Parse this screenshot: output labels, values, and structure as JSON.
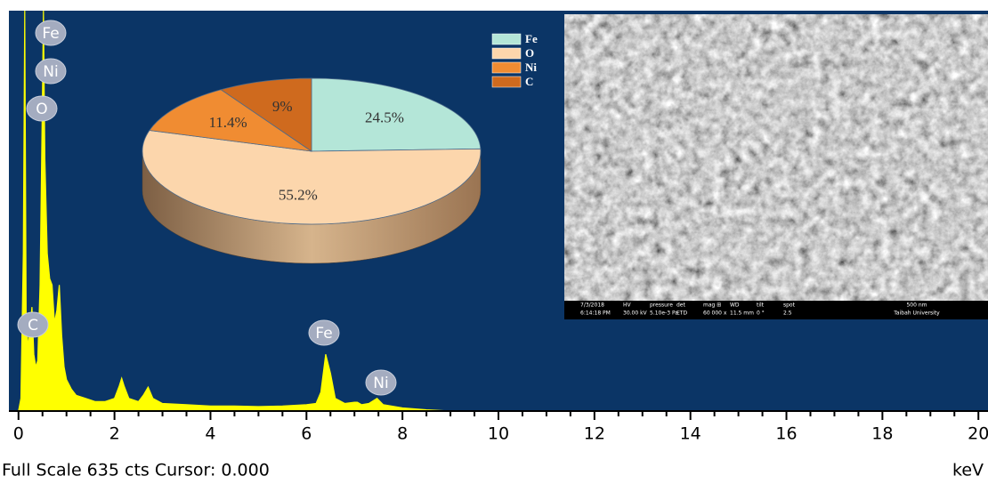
{
  "chart_data": [
    {
      "type": "area",
      "color": "#ffff00",
      "x": [
        0,
        0.05,
        0.1,
        0.13,
        0.16,
        0.2,
        0.25,
        0.28,
        0.32,
        0.36,
        0.4,
        0.45,
        0.5,
        0.52,
        0.55,
        0.6,
        0.65,
        0.7,
        0.75,
        0.8,
        0.85,
        0.9,
        0.95,
        1.0,
        1.1,
        1.2,
        1.4,
        1.6,
        1.8,
        2.0,
        2.1,
        2.15,
        2.2,
        2.3,
        2.5,
        2.6,
        2.7,
        2.8,
        3.0,
        3.5,
        4.0,
        4.5,
        5.0,
        5.5,
        6.0,
        6.2,
        6.3,
        6.4,
        6.5,
        6.6,
        6.8,
        7.0,
        7.06,
        7.15,
        7.3,
        7.47,
        7.6,
        8.0,
        8.5,
        9.0,
        20.0
      ],
      "values": [
        0,
        20,
        250,
        635,
        150,
        100,
        140,
        165,
        90,
        70,
        80,
        200,
        500,
        635,
        400,
        250,
        210,
        200,
        140,
        160,
        200,
        120,
        70,
        50,
        35,
        25,
        20,
        15,
        15,
        20,
        40,
        52,
        40,
        20,
        15,
        25,
        38,
        20,
        12,
        10,
        8,
        8,
        7,
        8,
        10,
        12,
        30,
        90,
        60,
        20,
        12,
        14,
        14,
        10,
        12,
        20,
        10,
        5,
        2,
        0,
        0
      ],
      "xlim": [
        -0.2,
        20.2
      ],
      "ylim": [
        0,
        635
      ],
      "xticks": [
        0,
        2,
        4,
        6,
        8,
        10,
        12,
        14,
        16,
        18,
        20
      ],
      "minor_xticks": [
        0.5,
        1,
        1.5,
        2.5,
        3,
        3.5,
        4.5,
        5,
        5.5,
        6.5,
        7,
        7.5,
        8.5,
        9,
        9.5,
        10.5,
        11,
        11.5,
        12.5,
        13,
        13.5,
        14.5,
        15,
        15.5,
        16.5,
        17,
        17.5,
        18.5,
        19,
        19.5
      ],
      "annotations": [
        "Fe",
        "Ni",
        "O",
        "C",
        "Fe",
        "Ni"
      ],
      "footer": "Full Scale 635 cts Cursor: 0.000",
      "x_label": "keV"
    },
    {
      "type": "pie",
      "categories": [
        "Fe",
        "O",
        "Ni",
        "C"
      ],
      "values": [
        24.5,
        55.2,
        11.4,
        9
      ],
      "value_labels": [
        "24.5%",
        "55.2%",
        "11.4%",
        "9%"
      ],
      "colors": [
        "#b4e6d8",
        "#fcd6ac",
        "#f08c32",
        "#cf6a1e"
      ],
      "legend": "top-right"
    }
  ],
  "sem_image": {
    "info_bar": [
      "7/3/2018",
      "6:14:18 PM",
      "HV",
      "30.00 kV",
      "pressure",
      "5.10e-3 Pa",
      "det",
      "ETD",
      "mag ⊞",
      "60 000 x",
      "WD",
      "11.5 mm",
      "tilt",
      "0 °",
      "spot",
      "2.5",
      "500 nm",
      "Taibah University"
    ]
  }
}
